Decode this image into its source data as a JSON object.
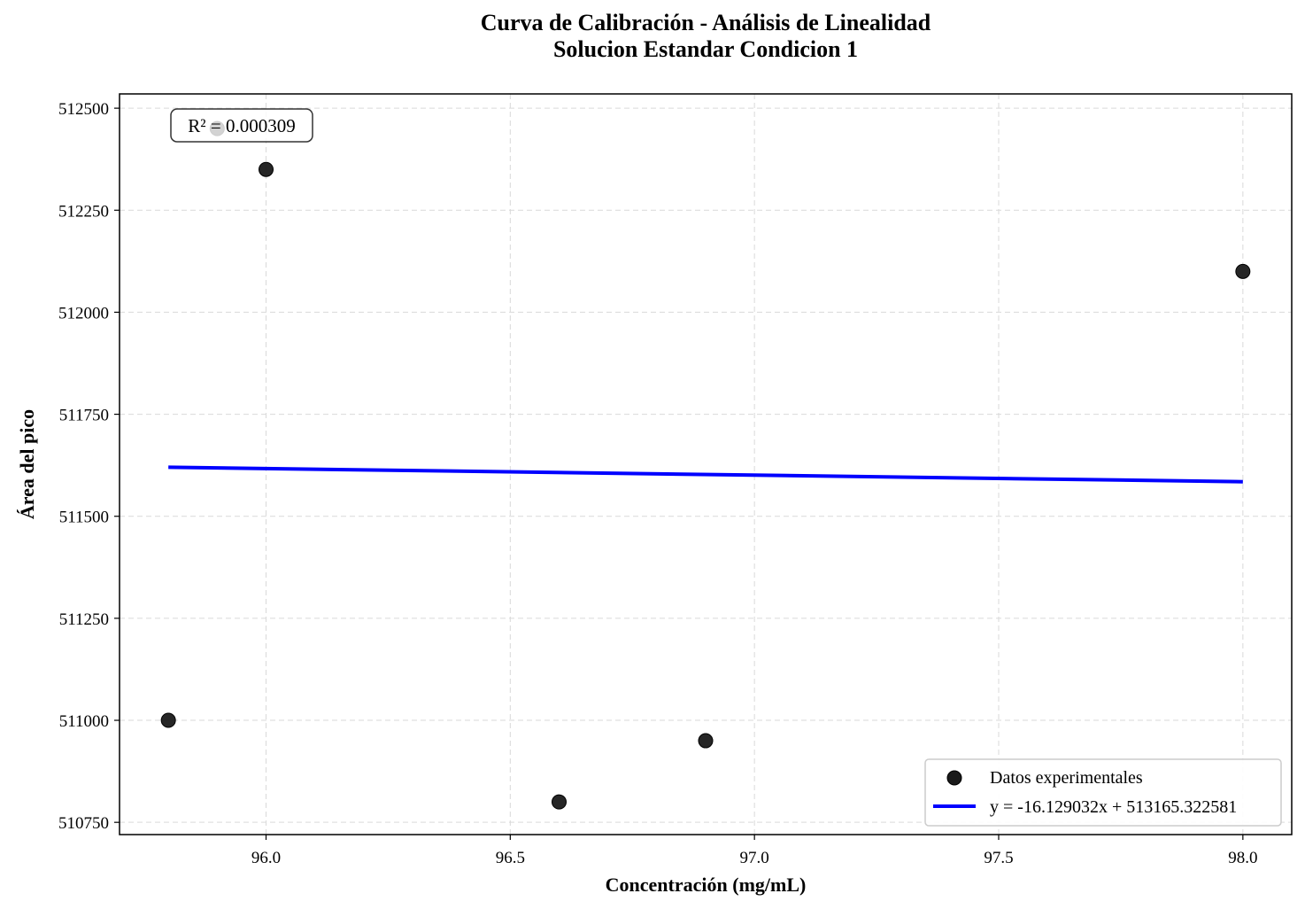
{
  "chart_data": {
    "type": "scatter",
    "title": "Curva de Calibración - Análisis de Linealidad",
    "subtitle": "Solucion Estandar Condicion 1",
    "xlabel": "Concentración (mg/mL)",
    "ylabel": "Área del pico",
    "xlim": [
      95.7,
      98.1
    ],
    "ylim": [
      510720,
      512535
    ],
    "x_ticks": [
      96.0,
      96.5,
      97.0,
      97.5,
      98.0
    ],
    "x_tick_labels": [
      "96.0",
      "96.5",
      "97.0",
      "97.5",
      "98.0"
    ],
    "y_ticks": [
      510750,
      511000,
      511250,
      511500,
      511750,
      512000,
      512250,
      512500
    ],
    "y_tick_labels": [
      "510750",
      "511000",
      "511250",
      "511500",
      "511750",
      "512000",
      "512250",
      "512500"
    ],
    "grid": true,
    "legend_position": "lower-right",
    "series": [
      {
        "name": "Datos experimentales",
        "kind": "scatter",
        "color": "#1a1a1a",
        "points": [
          {
            "x": 95.8,
            "y": 511000
          },
          {
            "x": 95.9,
            "y": 512450
          },
          {
            "x": 96.0,
            "y": 512350
          },
          {
            "x": 96.6,
            "y": 510800
          },
          {
            "x": 96.9,
            "y": 510950
          },
          {
            "x": 98.0,
            "y": 512100
          }
        ]
      },
      {
        "name": "y = -16.129032x + 513165.322581",
        "kind": "line",
        "color": "#0000ff",
        "slope": -16.129032,
        "intercept": 513165.322581,
        "x_range": [
          95.8,
          98.0
        ]
      }
    ],
    "annotation": "R² = 0.000309"
  }
}
